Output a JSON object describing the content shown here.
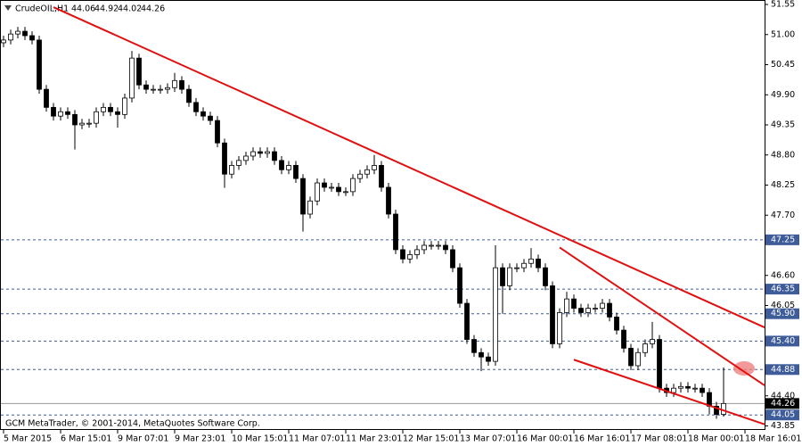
{
  "chart_data": {
    "type": "candlestick",
    "title": "CrudeOIL,H1",
    "footer": "GCM MetaTrader, © 2001-2014, MetaQuotes Software Corp.",
    "open": [
      50.85,
      50.9,
      51.01,
      51.06,
      50.98,
      50.9,
      50.0,
      49.67,
      49.51,
      49.59,
      49.54,
      49.35,
      49.38,
      49.38,
      49.59,
      49.67,
      49.59,
      49.54,
      49.84,
      50.57,
      50.08,
      50.0,
      50.0,
      50.0,
      50.03,
      50.16,
      50.0,
      49.76,
      49.59,
      49.51,
      49.43,
      49.02,
      48.45,
      48.61,
      48.7,
      48.78,
      48.86,
      48.83,
      48.86,
      48.7,
      48.53,
      48.61,
      48.37,
      47.72,
      47.96,
      48.29,
      48.21,
      48.21,
      48.13,
      48.13,
      48.37,
      48.45,
      48.53,
      48.61,
      48.21,
      47.72,
      47.07,
      46.9,
      46.98,
      47.07,
      47.15,
      47.15,
      47.15,
      47.07,
      46.74,
      46.09,
      45.43,
      45.19,
      45.11,
      45.03,
      46.74,
      46.41,
      46.74,
      46.74,
      46.82,
      46.9,
      46.74,
      46.41,
      45.35,
      45.92,
      46.17,
      46.0,
      45.92,
      46.0,
      46.0,
      46.09,
      45.84,
      45.6,
      45.27,
      44.95,
      45.19,
      45.35,
      45.43,
      44.54,
      44.46,
      44.54,
      44.57,
      44.54,
      44.54,
      44.46,
      44.21,
      44.06
    ],
    "high": [
      50.98,
      51.09,
      51.14,
      51.14,
      51.06,
      50.98,
      50.08,
      49.75,
      49.67,
      49.67,
      49.62,
      49.46,
      49.46,
      49.67,
      49.75,
      49.75,
      49.67,
      49.92,
      50.7,
      50.65,
      50.16,
      50.08,
      50.08,
      50.11,
      50.3,
      50.24,
      50.08,
      49.84,
      49.67,
      49.59,
      49.51,
      49.1,
      48.69,
      48.78,
      48.86,
      48.94,
      48.94,
      48.94,
      48.94,
      48.78,
      48.69,
      48.69,
      48.45,
      48.04,
      48.37,
      48.37,
      48.29,
      48.29,
      48.21,
      48.45,
      48.53,
      48.61,
      48.8,
      48.69,
      48.29,
      47.8,
      47.15,
      47.06,
      47.15,
      47.23,
      47.23,
      47.23,
      47.23,
      47.15,
      46.82,
      46.17,
      45.51,
      45.27,
      45.19,
      47.15,
      46.82,
      46.82,
      46.82,
      46.9,
      47.1,
      46.98,
      46.82,
      46.49,
      46.0,
      46.3,
      46.25,
      46.08,
      46.08,
      46.08,
      46.17,
      46.17,
      45.92,
      45.68,
      45.35,
      45.27,
      45.43,
      45.75,
      45.51,
      44.62,
      44.62,
      44.65,
      44.65,
      44.62,
      44.62,
      44.54,
      44.29,
      44.92
    ],
    "low": [
      50.77,
      50.82,
      50.93,
      50.9,
      50.82,
      49.92,
      49.59,
      49.43,
      49.43,
      49.46,
      48.9,
      49.27,
      49.3,
      49.3,
      49.51,
      49.51,
      49.3,
      49.46,
      49.76,
      50.0,
      49.92,
      49.92,
      49.92,
      49.92,
      49.95,
      49.92,
      49.68,
      49.51,
      49.43,
      49.35,
      48.94,
      48.2,
      48.37,
      48.53,
      48.62,
      48.7,
      48.75,
      48.75,
      48.62,
      48.45,
      48.45,
      48.29,
      47.4,
      47.64,
      47.88,
      48.13,
      48.13,
      48.05,
      48.05,
      48.05,
      48.29,
      48.37,
      48.45,
      48.13,
      47.64,
      46.99,
      46.82,
      46.82,
      46.9,
      46.99,
      47.07,
      47.07,
      46.99,
      46.66,
      46.01,
      45.35,
      45.11,
      44.85,
      44.95,
      44.95,
      45.9,
      46.33,
      46.66,
      46.66,
      46.74,
      46.66,
      46.33,
      45.27,
      45.27,
      45.84,
      45.92,
      45.84,
      45.84,
      45.92,
      45.92,
      45.76,
      45.52,
      45.19,
      44.87,
      44.87,
      45.11,
      45.27,
      44.46,
      44.38,
      44.38,
      44.46,
      44.46,
      44.46,
      44.38,
      44.06,
      43.98,
      44.02
    ],
    "close": [
      50.9,
      51.01,
      51.06,
      50.98,
      50.9,
      50.0,
      49.67,
      49.51,
      49.59,
      49.54,
      49.35,
      49.38,
      49.38,
      49.59,
      49.67,
      49.59,
      49.54,
      49.84,
      50.57,
      50.08,
      50.0,
      50.0,
      50.0,
      50.03,
      50.16,
      50.0,
      49.76,
      49.59,
      49.51,
      49.43,
      49.02,
      48.45,
      48.61,
      48.7,
      48.78,
      48.86,
      48.83,
      48.86,
      48.7,
      48.53,
      48.61,
      48.37,
      47.72,
      47.96,
      48.29,
      48.21,
      48.21,
      48.13,
      48.13,
      48.37,
      48.45,
      48.53,
      48.61,
      48.21,
      47.72,
      47.07,
      46.9,
      46.98,
      47.07,
      47.15,
      47.15,
      47.15,
      47.07,
      46.74,
      46.09,
      45.43,
      45.19,
      45.11,
      45.03,
      46.74,
      46.41,
      46.74,
      46.74,
      46.82,
      46.9,
      46.74,
      46.41,
      45.35,
      45.92,
      46.17,
      46.0,
      45.92,
      46.0,
      46.0,
      46.09,
      45.84,
      45.6,
      45.27,
      44.95,
      45.19,
      45.35,
      45.43,
      44.54,
      44.46,
      44.54,
      44.57,
      44.54,
      44.54,
      44.46,
      44.21,
      44.06,
      44.26
    ],
    "ylim": [
      43.85,
      51.55
    ],
    "yticks": [
      51.55,
      {
        "value": 51,
        "label": "51.00"
      },
      50.45,
      {
        "value": 49.9,
        "label": "49.90"
      },
      49.35,
      {
        "value": 48.8,
        "label": "48.80"
      },
      48.25,
      {
        "value": 47.7,
        "label": "47.70"
      },
      {
        "value": 46.6,
        "label": "46.60"
      },
      46.05,
      {
        "value": 44.4,
        "label": "44.40"
      },
      43.85
    ],
    "xticks": [
      {
        "value": 0,
        "label": "5 Mar 2015"
      },
      {
        "value": 8,
        "label": "6 Mar 15:01"
      },
      {
        "value": 16,
        "label": "9 Mar 07:01"
      },
      {
        "value": 24,
        "label": "9 Mar 23:01"
      },
      {
        "value": 32,
        "label": "10 Mar 15:01"
      },
      {
        "value": 40,
        "label": "11 Mar 07:01"
      },
      {
        "value": 48,
        "label": "11 Mar 23:01"
      },
      {
        "value": 56,
        "label": "12 Mar 15:01"
      },
      {
        "value": 64,
        "label": "13 Mar 07:01"
      },
      {
        "value": 72,
        "label": "16 Mar 00:01"
      },
      {
        "value": 80,
        "label": "16 Mar 16:01"
      },
      {
        "value": 88,
        "label": "17 Mar 08:01"
      },
      {
        "value": 96,
        "label": "18 Mar 00:01"
      },
      {
        "value": 104,
        "label": "18 Mar 16:01"
      }
    ],
    "levels": [
      47.25,
      46.35,
      {
        "value": 45.9,
        "label": "45.90"
      },
      {
        "value": 45.4,
        "label": "45.40"
      },
      44.88,
      44.05
    ],
    "level_color": "#3e5c9a",
    "trend_lines": [
      {
        "x": [
          7,
          106.75
        ],
        "y": [
          51.5,
          45.65
        ]
      },
      {
        "x": [
          78,
          106.75
        ],
        "y": [
          47.11,
          44.59
        ]
      },
      {
        "x": [
          80,
          106.75
        ],
        "y": [
          45.06,
          43.88
        ]
      }
    ],
    "trend_color": "#e01010"
  }
}
